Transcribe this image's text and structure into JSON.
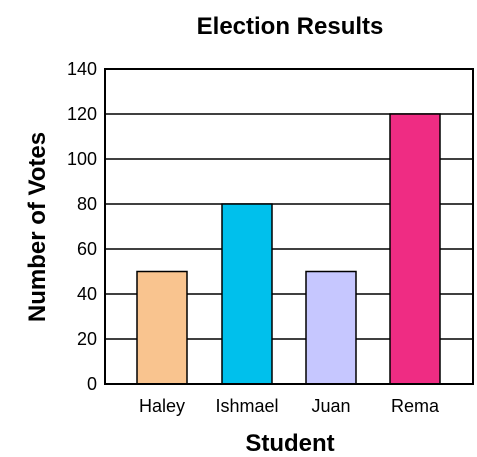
{
  "chart_data": {
    "type": "bar",
    "title": "Election Results",
    "xlabel": "Student",
    "ylabel": "Number of Votes",
    "categories": [
      "Haley",
      "Ishmael",
      "Juan",
      "Rema"
    ],
    "values": [
      50,
      80,
      50,
      120
    ],
    "ylim": [
      0,
      140
    ],
    "yticks": [
      0,
      20,
      40,
      60,
      80,
      100,
      120,
      140
    ],
    "grid": true,
    "legend": "none",
    "colors": {
      "Haley": "#f9c48f",
      "Ishmael": "#00c0ec",
      "Juan": "#c6c7ff",
      "Rema": "#ef2c83"
    },
    "grid_color": "#000000"
  }
}
